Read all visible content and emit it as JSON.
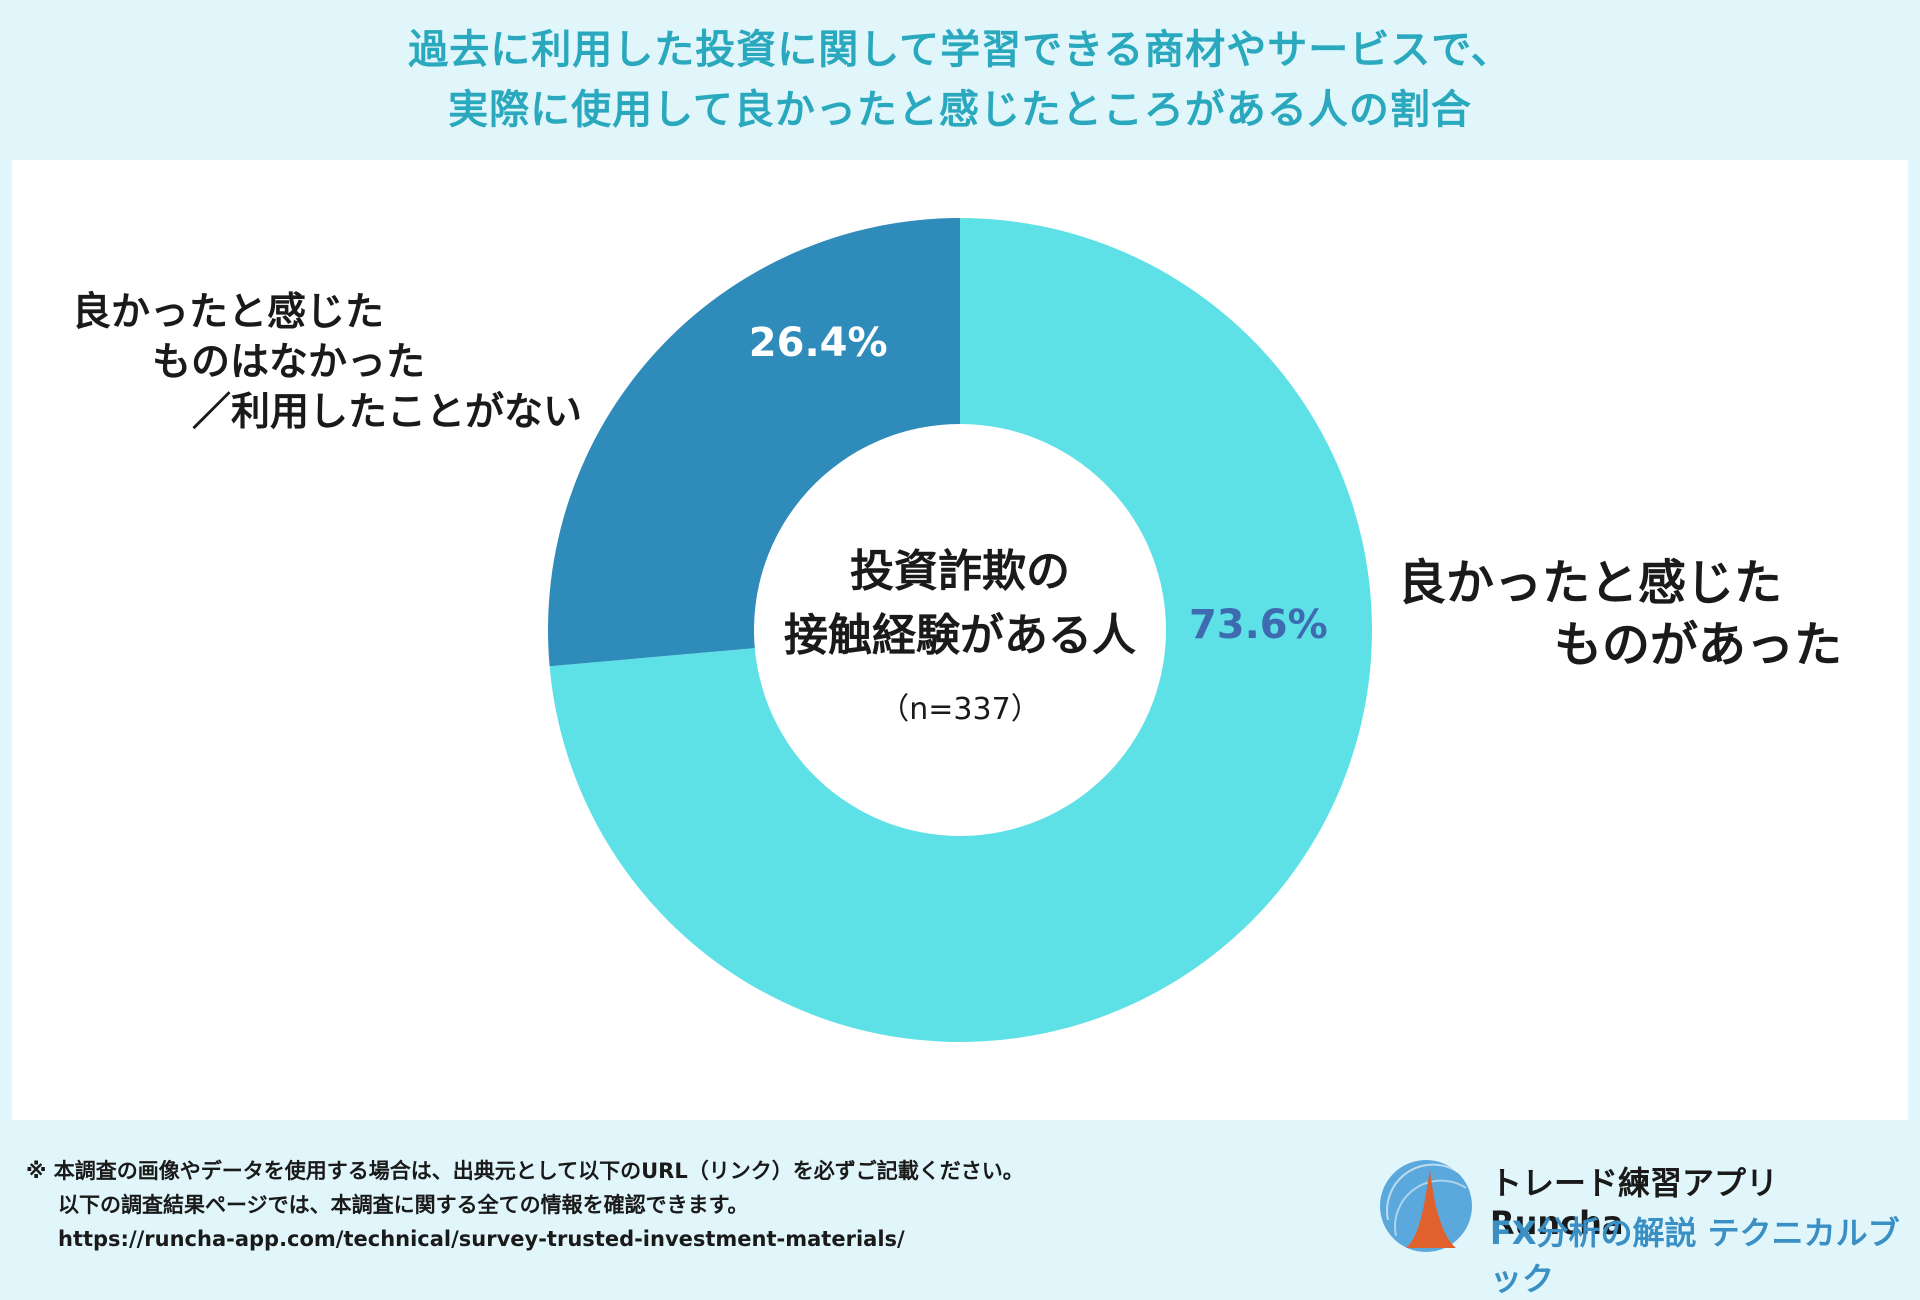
{
  "title": {
    "line1": "過去に利用した投資に関して学習できる商材やサービスで、",
    "line2": "実際に使用して良かったと感じたところがある人の割合"
  },
  "center": {
    "line1": "投資詐欺の",
    "line2": "接触経験がある人",
    "n": "（n=337）"
  },
  "labels": {
    "left": [
      "良かったと感じた",
      "ものはなかった",
      "／利用したことがない"
    ],
    "right": [
      "良かったと感じた",
      "ものがあった"
    ]
  },
  "chart_data": {
    "type": "pie",
    "variant": "donut",
    "slices": [
      {
        "label": "良かったと感じたものがあった",
        "value": 73.6,
        "display": "73.6%",
        "color": "#5ee1e6",
        "label_color": "#3e6bb0"
      },
      {
        "label": "良かったと感じたものはなかった／利用したことがない",
        "value": 26.4,
        "display": "26.4%",
        "color": "#2f8bb9",
        "label_color": "#ffffff"
      }
    ],
    "start": "12 o'clock",
    "direction": "clockwise",
    "n": 337
  },
  "footer": {
    "notes": [
      "※ 本調査の画像やデータを使用する場合は、出典元として以下のURL（リンク）を必ずご記載ください。",
      "以下の調査結果ページでは、本調査に関する全ての情報を確認できます。",
      "https://runcha-app.com/technical/survey-trusted-investment-materials/"
    ],
    "brand_name": "トレード練習アプリ  Runcha",
    "brand_sub": "FX分析の解説  テクニカルブック",
    "logo_icon": "runcha-logo-icon"
  },
  "colors": {
    "title": "#2aa8bd",
    "background": "#e0f6fb",
    "panel": "#ffffff",
    "brand_sub": "#3a8fc4"
  }
}
